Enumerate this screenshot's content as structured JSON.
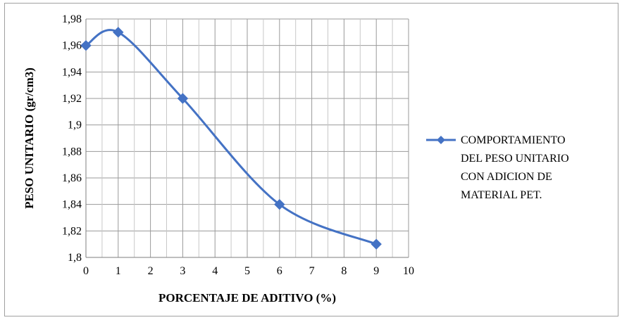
{
  "chart_data": {
    "type": "line",
    "title": "",
    "xlabel": "PORCENTAJE DE ADITIVO (%)",
    "ylabel": "PESO UNITARIO (gr/cm3)",
    "xlim": [
      0,
      10
    ],
    "ylim": [
      1.8,
      1.98
    ],
    "x_ticks": [
      0,
      1,
      2,
      3,
      4,
      5,
      6,
      7,
      8,
      9,
      10
    ],
    "x_tick_labels": [
      "0",
      "1",
      "2",
      "3",
      "4",
      "5",
      "6",
      "7",
      "8",
      "9",
      "10"
    ],
    "y_ticks": [
      1.8,
      1.82,
      1.84,
      1.86,
      1.88,
      1.9,
      1.92,
      1.94,
      1.96,
      1.98
    ],
    "y_tick_labels": [
      "1,8",
      "1,82",
      "1,84",
      "1,86",
      "1,88",
      "1,9",
      "1,92",
      "1,94",
      "1,96",
      "1,98"
    ],
    "grid": true,
    "legend_position": "right",
    "series": [
      {
        "name": "COMPORTAMIENTO DEL PESO UNITARIO CON ADICION DE MATERIAL PET.",
        "legend_lines": [
          "COMPORTAMIENTO",
          "DEL PESO UNITARIO",
          "CON ADICION DE",
          "MATERIAL PET."
        ],
        "color": "#4472c4",
        "marker": "diamond",
        "smooth": true,
        "x": [
          0,
          1,
          3,
          6,
          9
        ],
        "y": [
          1.96,
          1.97,
          1.92,
          1.84,
          1.81
        ]
      }
    ]
  }
}
